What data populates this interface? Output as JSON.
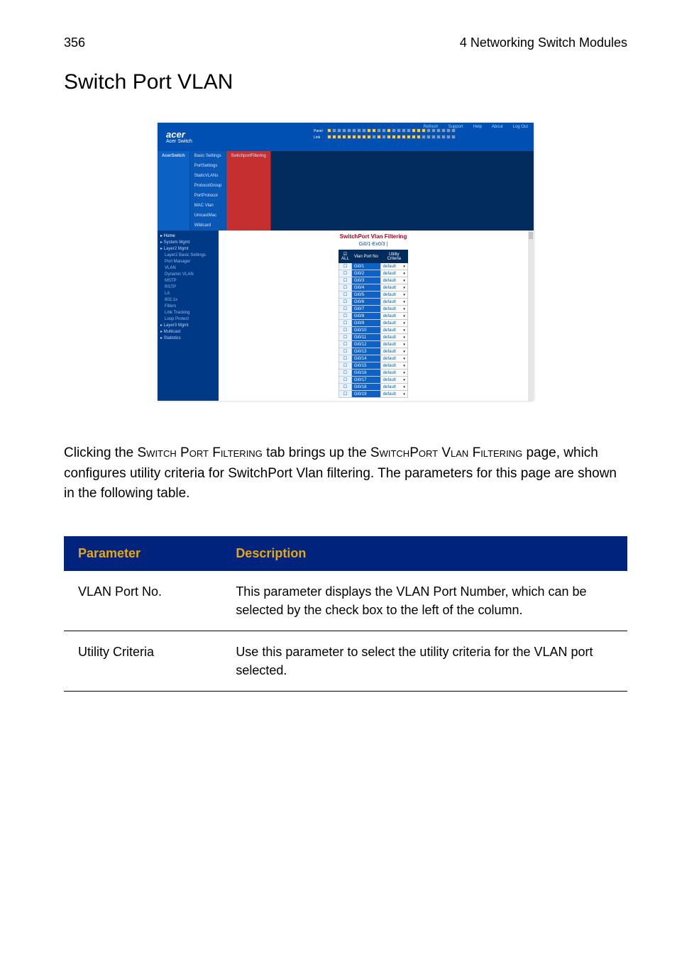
{
  "header": {
    "page_number": "356",
    "doc_section": "4 Networking Switch Modules"
  },
  "title": "Switch Port VLAN",
  "colors": {
    "table_header_bg": "#00247d",
    "table_header_fg": "#e7a614"
  },
  "screenshot": {
    "brand": "acer",
    "brand_sub": "Acer Switch",
    "top_links": [
      "Refresh",
      "Support",
      "Help",
      "About",
      "Log Out"
    ],
    "port_label_top": "Panel",
    "port_label_bottom": "Link",
    "tabs": {
      "brand": "AcerSwitch",
      "items": [
        "Basic Settings",
        "PortSettings",
        "StaticVLANs",
        "ProtocolGroup",
        "PortProtocol",
        "MAC Vlan",
        "UnicastMac",
        "Wildcard"
      ],
      "active_red": "SwitchportFiltering"
    },
    "sidebar": [
      {
        "label": "Home",
        "lvl": 0,
        "top": true
      },
      {
        "label": "System Mgmt",
        "lvl": 0
      },
      {
        "label": "Layer2 Mgmt",
        "lvl": 0
      },
      {
        "label": "Layer2 Basic Settings",
        "lvl": 1
      },
      {
        "label": "Port Manager",
        "lvl": 1
      },
      {
        "label": "VLAN",
        "lvl": 1
      },
      {
        "label": "Dynamic VLAN",
        "lvl": 1
      },
      {
        "label": "MSTP",
        "lvl": 1
      },
      {
        "label": "RSTP",
        "lvl": 1
      },
      {
        "label": "LA",
        "lvl": 1
      },
      {
        "label": "802.1x",
        "lvl": 1
      },
      {
        "label": "Filters",
        "lvl": 1
      },
      {
        "label": "Link Tracking",
        "lvl": 1
      },
      {
        "label": "Loop Protect",
        "lvl": 1
      },
      {
        "label": "Layer3 Mgmt",
        "lvl": 0
      },
      {
        "label": "Multicast",
        "lvl": 0
      },
      {
        "label": "Statistics",
        "lvl": 0
      }
    ],
    "main_title": "SwitchPort Vlan Filtering",
    "main_sub": "Gi0/1-Ex0/3 |",
    "table": {
      "cols": [
        "ALL",
        "Vlan Port No",
        "Utility Criteria"
      ],
      "rows": [
        [
          "",
          "Gi0/1",
          "default"
        ],
        [
          "",
          "Gi0/2",
          "default"
        ],
        [
          "",
          "Gi0/3",
          "default"
        ],
        [
          "",
          "Gi0/4",
          "default"
        ],
        [
          "",
          "Gi0/5",
          "default"
        ],
        [
          "",
          "Gi0/6",
          "default"
        ],
        [
          "",
          "Gi0/7",
          "default"
        ],
        [
          "",
          "Gi0/8",
          "default"
        ],
        [
          "",
          "Gi0/9",
          "default"
        ],
        [
          "",
          "Gi0/10",
          "default"
        ],
        [
          "",
          "Gi0/11",
          "default"
        ],
        [
          "",
          "Gi0/12",
          "default"
        ],
        [
          "",
          "Gi0/13",
          "default"
        ],
        [
          "",
          "Gi0/14",
          "default"
        ],
        [
          "",
          "Gi0/15",
          "default"
        ],
        [
          "",
          "Gi0/16",
          "default"
        ],
        [
          "",
          "Gi0/17",
          "default"
        ],
        [
          "",
          "Gi0/18",
          "default"
        ],
        [
          "",
          "Gi0/19",
          "default"
        ]
      ]
    }
  },
  "body_text": {
    "pre1": "Clicking the ",
    "sc1": "Switch Port Filtering",
    "mid1": " tab brings up the ",
    "sc2": "SwitchPort Vlan Filtering",
    "post": " page, which configures utility criteria for SwitchPort Vlan filtering. The parameters for this page are shown in the following table."
  },
  "param_table": {
    "headers": {
      "param": "Parameter",
      "desc": "Description"
    },
    "rows": [
      {
        "param": "VLAN Port No.",
        "desc": "This parameter displays the VLAN Port Number, which can be selected by the check box to the left of the column."
      },
      {
        "param": "Utility Criteria",
        "desc": "Use this parameter to select the utility criteria for the VLAN port selected."
      }
    ]
  }
}
